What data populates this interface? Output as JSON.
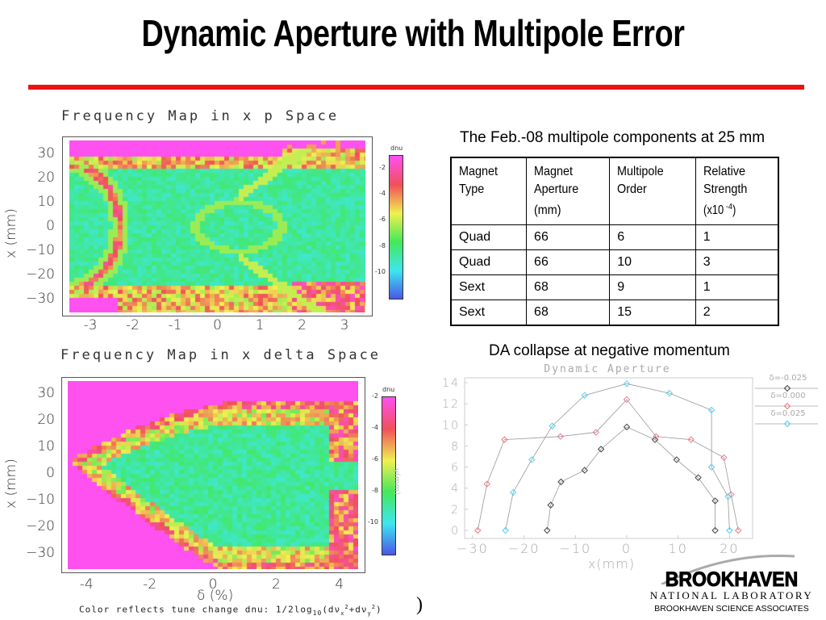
{
  "slide": {
    "title": "Dynamic Aperture with Multipole Error",
    "accent_color": "#ee1111",
    "table_caption": "The Feb.-08 multipole components at 25 mm",
    "da_caption": "DA collapse at negative momentum",
    "color_note_prefix": "Color reflects tune change dnu: 1/2log",
    "color_note_sub": "10",
    "color_note_suffix": "(dν",
    "color_note_x": "x",
    "color_note_mid": "+dν",
    "color_note_y": "y",
    "color_note_end": ")",
    "sup2": "2",
    "slide_number_fragment": ")",
    "logo": {
      "name": "BROOKHAVEN",
      "line2": "NATIONAL LABORATORY",
      "line3": "BROOKHAVEN SCIENCE ASSOCIATES"
    }
  },
  "table": {
    "headers": [
      "Magnet Type",
      "Magnet Aperture (mm)",
      "Multipole Order",
      "Relative Strength (x10-4)"
    ],
    "header_lines": [
      [
        "Magnet",
        "Type"
      ],
      [
        "Magnet",
        "Aperture",
        "(mm)"
      ],
      [
        "Multipole",
        "Order"
      ],
      [
        "Relative",
        "Strength",
        "(x10",
        "-4",
        ")"
      ]
    ],
    "rows": [
      [
        "Quad",
        "66",
        "6",
        "1"
      ],
      [
        "Quad",
        "66",
        "10",
        "3"
      ],
      [
        "Sext",
        "68",
        "9",
        "1"
      ],
      [
        "Sext",
        "68",
        "15",
        "2"
      ]
    ]
  },
  "chart_data": [
    {
      "type": "heatmap",
      "title": "Frequency Map in x p Space",
      "ylabel": "x (mm)",
      "xlabel": "",
      "xlim": [
        -3.5,
        3.5
      ],
      "ylim": [
        -35,
        35
      ],
      "xticks": [
        "-3",
        "-2",
        "-1",
        "0",
        "1",
        "2",
        "3"
      ],
      "yticks": [
        "30",
        "20",
        "10",
        "0",
        "−10",
        "−20",
        "−30"
      ],
      "colorbar": {
        "label": "dnu",
        "range": [
          -12,
          -1
        ],
        "ticks": [
          "-2",
          "-4",
          "-6",
          "-8",
          "-10"
        ],
        "colormap": [
          "#4b55e6",
          "#3ee6f0",
          "#44e85a",
          "#f0f050",
          "#f0505a",
          "#ff50f0"
        ]
      }
    },
    {
      "type": "heatmap",
      "title": "Frequency Map in x delta Space",
      "ylabel": "x (mm)",
      "xlabel": "δ (%)",
      "xlim": [
        -4.5,
        4.5
      ],
      "ylim": [
        -35,
        35
      ],
      "xticks": [
        "-4",
        "-2",
        "0",
        "2",
        "4"
      ],
      "yticks": [
        "30",
        "20",
        "10",
        "0",
        "−10",
        "−20",
        "−30"
      ],
      "colorbar": {
        "label": "dnu",
        "secondary_label": "y(mm)",
        "range": [
          -12,
          -2
        ],
        "ticks": [
          "-2",
          "-4",
          "-6",
          "-8",
          "-10"
        ]
      }
    },
    {
      "type": "line",
      "title": "Dynamic Aperture",
      "xlabel": "x(mm)",
      "ylabel": "",
      "xlim": [
        -32,
        24
      ],
      "ylim": [
        -0.7,
        14.4
      ],
      "xticks": [
        -30,
        -20,
        -10,
        0,
        10,
        20
      ],
      "yticks": [
        0,
        2,
        4,
        6,
        8,
        10,
        12,
        14
      ],
      "grid": false,
      "legend_placement": "right",
      "series": [
        {
          "name": "δ=-0.025",
          "color": "#444444",
          "x": [
            -15.5,
            -14.8,
            -12.8,
            -8.2,
            -5,
            0,
            5.5,
            9.7,
            13.9,
            17.2,
            17.2
          ],
          "y": [
            0,
            2.4,
            4.6,
            5.7,
            7.7,
            9.8,
            8.6,
            6.7,
            5.0,
            2.8,
            0
          ]
        },
        {
          "name": "δ=0.000",
          "color": "#ee7788",
          "x": [
            -29,
            -27.2,
            -23.8,
            -12.9,
            -6,
            0,
            5.7,
            12.5,
            18.9,
            20.3,
            21.7
          ],
          "y": [
            0,
            4.4,
            8.6,
            8.9,
            9.3,
            12.4,
            8.9,
            8.6,
            6.9,
            3.4,
            0
          ]
        },
        {
          "name": "δ=0.025",
          "color": "#55ccee",
          "x": [
            -23.6,
            -22.1,
            -18.5,
            -14.5,
            -8.2,
            0,
            8.3,
            16.5,
            16.5,
            19.7,
            20
          ],
          "y": [
            0,
            3.6,
            6.7,
            9.9,
            12.8,
            13.9,
            13,
            11.4,
            6,
            3.2,
            0
          ]
        }
      ]
    }
  ]
}
